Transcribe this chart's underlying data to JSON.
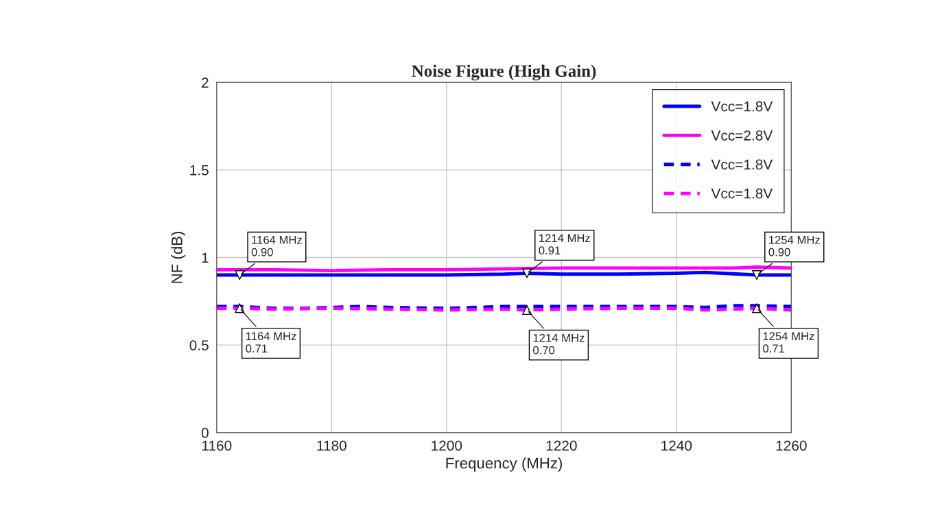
{
  "chart_data": {
    "type": "line",
    "title": "Noise Figure (High Gain)",
    "xlabel": "Frequency (MHz)",
    "ylabel": "NF (dB)",
    "xlim": [
      1160,
      1260
    ],
    "xticks": [
      1160,
      1180,
      1200,
      1220,
      1240,
      1260
    ],
    "ylim": [
      0,
      2
    ],
    "yticks": [
      0,
      0.5,
      1,
      1.5,
      2
    ],
    "grid": true,
    "legend": "top right",
    "marker": "none",
    "series": [
      {
        "name": "Vcc=1.8V",
        "color": "#0000ff",
        "line_style": "solid",
        "x": [
          1160,
          1170,
          1180,
          1190,
          1200,
          1210,
          1214,
          1220,
          1230,
          1240,
          1245,
          1254,
          1260
        ],
        "values": [
          0.9,
          0.9,
          0.9,
          0.9,
          0.9,
          0.905,
          0.91,
          0.905,
          0.905,
          0.91,
          0.915,
          0.9,
          0.9
        ]
      },
      {
        "name": "Vcc=2.8V",
        "color": "#ff00ff",
        "line_style": "solid",
        "x": [
          1160,
          1170,
          1180,
          1190,
          1200,
          1210,
          1220,
          1230,
          1240,
          1250,
          1254,
          1260
        ],
        "values": [
          0.93,
          0.93,
          0.925,
          0.93,
          0.93,
          0.935,
          0.94,
          0.94,
          0.94,
          0.94,
          0.945,
          0.94
        ]
      },
      {
        "name": "Vcc=1.8V",
        "color": "#0000ff",
        "line_style": "dashed",
        "x": [
          1160,
          1164,
          1170,
          1175,
          1180,
          1185,
          1190,
          1200,
          1205,
          1210,
          1214,
          1220,
          1230,
          1240,
          1245,
          1250,
          1254,
          1260
        ],
        "values": [
          0.72,
          0.72,
          0.71,
          0.71,
          0.715,
          0.72,
          0.715,
          0.71,
          0.715,
          0.72,
          0.72,
          0.72,
          0.72,
          0.72,
          0.715,
          0.725,
          0.725,
          0.72
        ]
      },
      {
        "name": "Vcc=1.8V",
        "color": "#ff00ff",
        "line_style": "dashed",
        "x": [
          1160,
          1164,
          1170,
          1180,
          1190,
          1200,
          1210,
          1214,
          1220,
          1230,
          1240,
          1245,
          1250,
          1254,
          1260
        ],
        "values": [
          0.71,
          0.71,
          0.705,
          0.71,
          0.705,
          0.7,
          0.705,
          0.7,
          0.705,
          0.71,
          0.71,
          0.7,
          0.705,
          0.71,
          0.7
        ]
      }
    ],
    "annotations": [
      {
        "text": "1164 MHz\n0.90",
        "x": 1164,
        "y": 0.9
      },
      {
        "text": "1214 MHz\n0.91",
        "x": 1214,
        "y": 0.91
      },
      {
        "text": "1254 MHz\n0.90",
        "x": 1254,
        "y": 0.9
      },
      {
        "text": "1164 MHz\n0.71",
        "x": 1164,
        "y": 0.71
      },
      {
        "text": "1214 MHz\n0.70",
        "x": 1214,
        "y": 0.7
      },
      {
        "text": "1254 MHz\n0.71",
        "x": 1254,
        "y": 0.71
      }
    ]
  }
}
